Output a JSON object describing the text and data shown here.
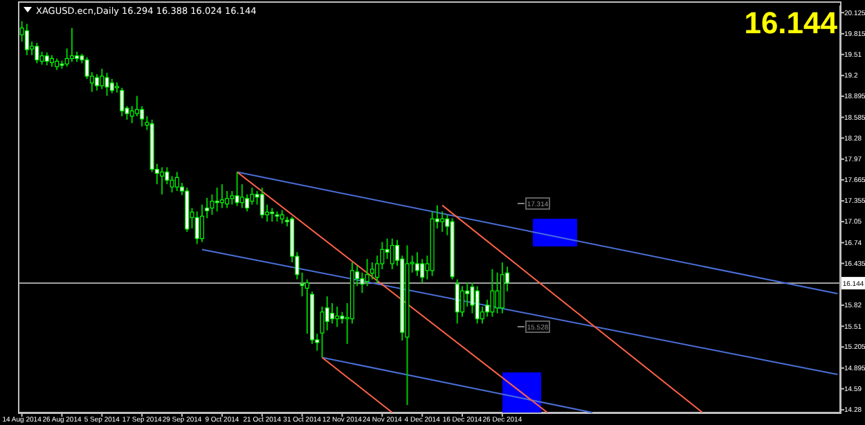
{
  "chart_data": {
    "type": "candlestick",
    "title": "XAGUSD.ecn,Daily  16.294 16.388 16.024 16.144",
    "categories": [
      "14 Aug 2014",
      null,
      null,
      null,
      null,
      null,
      null,
      null,
      "26 Aug 2014",
      null,
      null,
      null,
      null,
      null,
      null,
      null,
      "5 Sep 2014",
      null,
      null,
      null,
      null,
      null,
      null,
      null,
      "17 Sep 2014",
      null,
      null,
      null,
      null,
      null,
      null,
      null,
      "29 Sep 2014",
      null,
      null,
      null,
      null,
      null,
      null,
      null,
      "9 Oct 2014",
      null,
      null,
      null,
      null,
      null,
      null,
      null,
      "21 Oct 2014",
      null,
      null,
      null,
      null,
      null,
      null,
      null,
      "31 Oct 2014",
      null,
      null,
      null,
      null,
      null,
      null,
      null,
      "12 Nov 2014",
      null,
      null,
      null,
      null,
      null,
      null,
      null,
      "24 Nov 2014",
      null,
      null,
      null,
      null,
      null,
      null,
      null,
      "4 Dec 2014",
      null,
      null,
      null,
      null,
      null,
      null,
      null,
      "16 Dec 2014",
      null,
      null,
      null,
      null,
      null,
      null,
      null,
      "26 Dec 2014",
      null,
      null,
      null,
      null,
      null,
      null,
      null,
      null,
      null,
      null,
      null,
      null,
      null,
      null,
      null,
      null,
      null,
      null,
      null,
      null,
      null,
      null,
      null,
      null,
      null,
      null,
      null,
      null,
      null,
      null,
      null,
      null,
      null,
      null,
      null,
      null,
      null,
      null,
      null,
      null,
      null,
      null,
      null,
      null,
      null,
      null,
      null,
      null,
      null,
      null,
      null,
      null,
      null,
      null,
      null,
      null,
      null,
      null,
      null,
      null,
      null,
      null,
      null,
      null,
      null,
      null,
      null
    ],
    "ohlc": [
      [
        19.8,
        20.0,
        19.7,
        19.9
      ],
      [
        19.86,
        19.96,
        19.5,
        19.58
      ],
      [
        19.59,
        19.7,
        19.5,
        19.63
      ],
      [
        19.63,
        19.68,
        19.38,
        19.43
      ],
      [
        19.41,
        19.55,
        19.36,
        19.49
      ],
      [
        19.49,
        19.54,
        19.35,
        19.41
      ],
      [
        19.39,
        19.5,
        19.33,
        19.45
      ],
      [
        19.33,
        19.45,
        19.28,
        19.41
      ],
      [
        19.37,
        19.42,
        19.3,
        19.35
      ],
      [
        19.37,
        19.6,
        19.33,
        19.45
      ],
      [
        19.45,
        19.9,
        19.4,
        19.49
      ],
      [
        19.49,
        19.55,
        19.4,
        19.45
      ],
      [
        19.49,
        19.52,
        19.38,
        19.43
      ],
      [
        19.43,
        19.47,
        19.15,
        19.19
      ],
      [
        19.09,
        19.25,
        18.96,
        19.19
      ],
      [
        19.17,
        19.22,
        18.98,
        19.05
      ],
      [
        19.05,
        19.3,
        19.0,
        19.19
      ],
      [
        19.17,
        19.24,
        18.9,
        19.03
      ],
      [
        19.09,
        19.15,
        18.94,
        18.98
      ],
      [
        19.02,
        19.1,
        18.95,
        19.04
      ],
      [
        18.98,
        19.02,
        18.6,
        18.68
      ],
      [
        18.72,
        18.75,
        18.55,
        18.64
      ],
      [
        18.6,
        18.75,
        18.5,
        18.68
      ],
      [
        18.64,
        18.9,
        18.6,
        18.7
      ],
      [
        18.7,
        18.75,
        18.45,
        18.56
      ],
      [
        18.47,
        18.6,
        18.4,
        18.51
      ],
      [
        18.49,
        18.55,
        17.78,
        17.82
      ],
      [
        17.82,
        17.9,
        17.6,
        17.76
      ],
      [
        17.72,
        17.85,
        17.45,
        17.78
      ],
      [
        17.78,
        17.85,
        17.6,
        17.66
      ],
      [
        17.56,
        17.72,
        17.48,
        17.66
      ],
      [
        17.56,
        17.78,
        17.5,
        17.7
      ],
      [
        17.56,
        17.62,
        17.44,
        17.5
      ],
      [
        17.5,
        17.55,
        16.9,
        16.94
      ],
      [
        17.11,
        17.25,
        16.95,
        17.19
      ],
      [
        17.11,
        17.2,
        16.72,
        16.8
      ],
      [
        16.8,
        17.3,
        16.75,
        17.13
      ],
      [
        17.25,
        17.4,
        17.1,
        17.21
      ],
      [
        17.25,
        17.45,
        17.15,
        17.35
      ],
      [
        17.35,
        17.55,
        17.2,
        17.33
      ],
      [
        17.33,
        17.6,
        17.25,
        17.37
      ],
      [
        17.31,
        17.5,
        17.25,
        17.39
      ],
      [
        17.39,
        17.5,
        17.3,
        17.43
      ],
      [
        17.43,
        17.78,
        17.28,
        17.33
      ],
      [
        17.33,
        17.6,
        17.25,
        17.41
      ],
      [
        17.39,
        17.45,
        17.2,
        17.25
      ],
      [
        17.35,
        17.55,
        17.3,
        17.45
      ],
      [
        17.45,
        17.5,
        17.3,
        17.41
      ],
      [
        17.45,
        17.55,
        17.1,
        17.15
      ],
      [
        17.15,
        17.3,
        17.05,
        17.19
      ],
      [
        17.19,
        17.25,
        17.05,
        17.17
      ],
      [
        17.15,
        17.2,
        17.05,
        17.13
      ],
      [
        17.09,
        17.22,
        17.02,
        17.15
      ],
      [
        17.07,
        17.12,
        16.98,
        17.05
      ],
      [
        17.09,
        17.12,
        16.45,
        16.54
      ],
      [
        16.54,
        16.6,
        16.2,
        16.27
      ],
      [
        16.13,
        16.3,
        15.95,
        16.11
      ],
      [
        16.07,
        16.2,
        15.4,
        16.15
      ],
      [
        15.98,
        16.02,
        15.25,
        15.31
      ],
      [
        15.31,
        15.4,
        15.15,
        15.27
      ],
      [
        15.41,
        15.8,
        15.05,
        15.72
      ],
      [
        15.78,
        15.95,
        15.45,
        15.58
      ],
      [
        15.7,
        15.85,
        15.55,
        15.62
      ],
      [
        15.62,
        15.8,
        15.5,
        15.66
      ],
      [
        15.66,
        15.72,
        15.55,
        15.62
      ],
      [
        15.62,
        15.85,
        15.25,
        15.64
      ],
      [
        15.62,
        16.45,
        15.55,
        16.33
      ],
      [
        16.31,
        16.4,
        16.1,
        16.21
      ],
      [
        16.21,
        16.3,
        16.0,
        16.13
      ],
      [
        16.17,
        16.5,
        16.1,
        16.27
      ],
      [
        16.29,
        16.45,
        16.2,
        16.35
      ],
      [
        16.23,
        16.55,
        16.15,
        16.43
      ],
      [
        16.43,
        16.75,
        16.35,
        16.64
      ],
      [
        16.64,
        16.8,
        16.5,
        16.6
      ],
      [
        16.43,
        16.8,
        16.35,
        16.7
      ],
      [
        16.7,
        16.78,
        16.4,
        16.48
      ],
      [
        16.5,
        16.55,
        15.3,
        15.42
      ],
      [
        15.35,
        16.7,
        14.35,
        16.43
      ],
      [
        16.43,
        16.55,
        16.3,
        16.45
      ],
      [
        16.43,
        16.6,
        16.25,
        16.33
      ],
      [
        16.43,
        16.5,
        16.15,
        16.23
      ],
      [
        16.33,
        16.55,
        16.2,
        16.43
      ],
      [
        16.33,
        17.2,
        16.25,
        17.09
      ],
      [
        17.09,
        17.29,
        16.95,
        17.05
      ],
      [
        17.05,
        17.2,
        16.9,
        17.09
      ],
      [
        17.09,
        17.15,
        16.85,
        16.98
      ],
      [
        17.05,
        17.1,
        16.2,
        16.24
      ],
      [
        16.13,
        16.2,
        15.55,
        15.72
      ],
      [
        15.72,
        16.1,
        15.65,
        16.03
      ],
      [
        16.03,
        16.15,
        15.8,
        15.99
      ],
      [
        16.09,
        16.15,
        15.7,
        15.82
      ],
      [
        16.03,
        16.1,
        15.55,
        15.62
      ],
      [
        15.62,
        15.8,
        15.55,
        15.72
      ],
      [
        15.82,
        15.9,
        15.65,
        15.72
      ],
      [
        15.72,
        16.35,
        15.65,
        16.03
      ],
      [
        15.78,
        16.3,
        15.7,
        16.03
      ],
      [
        15.78,
        16.45,
        15.7,
        16.27
      ],
      [
        16.294,
        16.388,
        16.024,
        16.144
      ],
      null,
      null,
      null,
      null,
      null,
      null,
      null,
      null,
      null,
      null,
      null,
      null,
      null,
      null,
      null,
      null,
      null,
      null,
      null,
      null,
      null,
      null,
      null,
      null,
      null,
      null,
      null,
      null,
      null,
      null,
      null,
      null,
      null,
      null,
      null,
      null,
      null,
      null,
      null,
      null,
      null,
      null,
      null,
      null,
      null,
      null,
      null,
      null,
      null,
      null,
      null,
      null,
      null,
      null,
      null,
      null,
      null,
      null,
      null,
      null,
      null,
      null,
      null,
      null,
      null,
      null
    ],
    "series": [
      {
        "type": "line",
        "color": "#4a6fd8",
        "values": [
          null,
          null,
          null,
          null,
          null,
          null,
          null,
          null,
          null,
          null,
          null,
          null,
          null,
          null,
          null,
          null,
          null,
          null,
          null,
          null,
          null,
          null,
          null,
          null,
          null,
          null,
          null,
          null,
          null,
          null,
          null,
          null,
          null,
          null,
          null,
          null,
          null,
          null,
          null,
          null,
          null,
          null,
          null,
          17.78,
          null,
          null,
          null,
          null,
          null,
          null,
          null,
          null,
          null,
          null,
          null,
          null,
          null,
          null,
          null,
          null,
          null,
          null,
          null,
          null,
          null,
          null,
          null,
          null,
          null,
          null,
          null,
          null,
          null,
          null,
          null,
          null,
          null,
          null,
          null,
          null,
          null,
          null,
          null,
          null,
          null,
          null,
          null,
          null,
          null,
          null,
          null,
          null,
          null,
          null,
          null,
          null,
          null,
          null,
          null,
          null,
          null,
          null,
          null,
          null,
          null,
          null,
          null,
          null,
          null,
          null,
          null,
          null,
          null,
          null,
          null,
          null,
          null,
          null,
          null,
          null,
          null,
          null,
          null,
          null,
          null,
          null,
          null,
          null,
          null,
          null,
          null,
          null,
          null,
          null,
          null,
          null,
          null,
          null,
          null,
          null,
          null,
          null,
          null,
          null,
          null,
          null,
          null,
          null,
          null,
          null,
          null,
          null,
          null,
          null,
          null,
          null,
          null,
          null,
          null,
          null,
          null,
          null,
          null,
          15.99
        ]
      },
      {
        "type": "line",
        "color": "#4a6fd8",
        "values": [
          null,
          null,
          null,
          null,
          null,
          null,
          null,
          null,
          null,
          null,
          null,
          null,
          null,
          null,
          null,
          null,
          null,
          null,
          null,
          null,
          null,
          null,
          null,
          null,
          null,
          null,
          null,
          null,
          null,
          null,
          null,
          null,
          null,
          null,
          null,
          null,
          16.64,
          null,
          null,
          null,
          null,
          null,
          null,
          null,
          null,
          null,
          null,
          null,
          null,
          null,
          null,
          null,
          null,
          null,
          null,
          null,
          null,
          null,
          null,
          null,
          null,
          null,
          null,
          null,
          null,
          null,
          null,
          null,
          null,
          null,
          null,
          null,
          null,
          null,
          null,
          null,
          null,
          null,
          null,
          null,
          null,
          null,
          null,
          null,
          null,
          null,
          null,
          null,
          null,
          null,
          null,
          null,
          null,
          null,
          null,
          null,
          null,
          null,
          null,
          null,
          null,
          null,
          null,
          null,
          null,
          null,
          null,
          null,
          null,
          null,
          null,
          null,
          null,
          null,
          null,
          null,
          null,
          null,
          null,
          null,
          null,
          null,
          null,
          null,
          null,
          null,
          null,
          null,
          null,
          null,
          null,
          null,
          null,
          null,
          null,
          null,
          null,
          null,
          null,
          null,
          null,
          null,
          null,
          null,
          null,
          null,
          null,
          null,
          null,
          null,
          null,
          null,
          null,
          null,
          null,
          null,
          null,
          null,
          null,
          null,
          null,
          null,
          null,
          14.8
        ]
      },
      {
        "type": "line",
        "color": "#4a6fd8",
        "values": [
          null,
          null,
          null,
          null,
          null,
          null,
          null,
          null,
          null,
          null,
          null,
          null,
          null,
          null,
          null,
          null,
          null,
          null,
          null,
          null,
          null,
          null,
          null,
          null,
          null,
          null,
          null,
          null,
          null,
          null,
          null,
          null,
          null,
          null,
          null,
          null,
          null,
          null,
          null,
          null,
          null,
          null,
          null,
          null,
          null,
          null,
          null,
          null,
          null,
          null,
          null,
          null,
          null,
          null,
          null,
          null,
          null,
          null,
          null,
          null,
          15.05,
          null,
          null,
          null,
          null,
          null,
          null,
          null,
          null,
          null,
          null,
          null,
          null,
          null,
          null,
          null,
          null,
          null,
          null,
          null,
          null,
          null,
          null,
          null,
          null,
          null,
          null,
          null,
          null,
          null,
          null,
          null,
          null,
          null,
          null,
          null,
          null,
          null,
          null,
          null,
          null,
          null,
          null,
          null,
          null,
          null,
          null,
          null,
          null,
          null,
          null,
          null,
          null,
          null,
          14.24,
          null,
          null,
          null,
          null,
          null,
          null,
          null,
          null,
          null,
          null,
          null,
          null,
          null,
          null,
          null,
          null,
          null,
          null,
          null,
          null,
          null,
          null,
          null,
          null,
          null,
          null,
          null,
          null,
          null,
          null,
          null,
          null,
          null,
          null,
          null,
          null,
          null,
          null,
          null,
          null,
          null,
          null,
          null,
          null,
          null,
          null,
          null,
          null,
          null
        ]
      },
      {
        "type": "line",
        "color": "#ff6347",
        "values": [
          null,
          null,
          null,
          null,
          null,
          null,
          null,
          null,
          null,
          null,
          null,
          null,
          null,
          null,
          null,
          null,
          null,
          null,
          null,
          null,
          null,
          null,
          null,
          null,
          null,
          null,
          null,
          null,
          null,
          null,
          null,
          null,
          null,
          null,
          null,
          null,
          null,
          null,
          null,
          null,
          null,
          null,
          null,
          17.78,
          null,
          null,
          null,
          null,
          null,
          null,
          null,
          null,
          null,
          null,
          null,
          null,
          null,
          null,
          null,
          null,
          null,
          null,
          null,
          null,
          null,
          null,
          null,
          null,
          null,
          null,
          null,
          null,
          null,
          null,
          null,
          null,
          null,
          null,
          null,
          null,
          null,
          null,
          null,
          null,
          null,
          null,
          null,
          null,
          null,
          null,
          null,
          null,
          null,
          null,
          null,
          null,
          null,
          null,
          null,
          null,
          null,
          null,
          null,
          null,
          null,
          14.24,
          null,
          null,
          null,
          null,
          null,
          null,
          null,
          null,
          null,
          null,
          null,
          null,
          null,
          null,
          null,
          null,
          null,
          null,
          null,
          null,
          null,
          null,
          null,
          null,
          null,
          null,
          null,
          null,
          null,
          null,
          null,
          null,
          null,
          null,
          null,
          null,
          null,
          null,
          null,
          null,
          null,
          null,
          null,
          null,
          null,
          null,
          null,
          null,
          null,
          null,
          null,
          null,
          null,
          null,
          null,
          null,
          null,
          null
        ]
      },
      {
        "type": "line",
        "color": "#ff6347",
        "values": [
          null,
          null,
          null,
          null,
          null,
          null,
          null,
          null,
          null,
          null,
          null,
          null,
          null,
          null,
          null,
          null,
          null,
          null,
          null,
          null,
          null,
          null,
          null,
          null,
          null,
          null,
          null,
          null,
          null,
          null,
          null,
          null,
          null,
          null,
          null,
          null,
          null,
          null,
          null,
          null,
          null,
          null,
          null,
          null,
          null,
          null,
          null,
          null,
          null,
          null,
          null,
          null,
          null,
          null,
          null,
          null,
          null,
          null,
          null,
          null,
          15.05,
          null,
          null,
          null,
          null,
          null,
          null,
          null,
          null,
          null,
          null,
          null,
          null,
          null,
          14.24,
          null,
          null,
          null,
          null,
          null,
          null,
          null,
          null,
          null,
          null,
          null,
          null,
          null,
          null,
          null,
          null,
          null,
          null,
          null,
          null,
          null,
          null,
          null,
          null,
          null,
          null,
          null,
          null,
          null,
          null,
          null,
          null,
          null,
          null,
          null,
          null,
          null,
          null,
          null,
          null,
          null,
          null,
          null,
          null,
          null,
          null,
          null,
          null,
          null,
          null,
          null,
          null,
          null,
          null,
          null,
          null,
          null,
          null,
          null,
          null,
          null,
          null,
          null,
          null,
          null,
          null,
          null,
          null,
          null,
          null,
          null,
          null,
          null,
          null,
          null,
          null,
          null,
          null,
          null,
          null,
          null,
          null,
          null,
          null,
          null,
          null,
          null,
          null,
          null
        ]
      },
      {
        "type": "line",
        "color": "#ff6347",
        "values": [
          null,
          null,
          null,
          null,
          null,
          null,
          null,
          null,
          null,
          null,
          null,
          null,
          null,
          null,
          null,
          null,
          null,
          null,
          null,
          null,
          null,
          null,
          null,
          null,
          null,
          null,
          null,
          null,
          null,
          null,
          null,
          null,
          null,
          null,
          null,
          null,
          null,
          null,
          null,
          null,
          null,
          null,
          null,
          null,
          null,
          null,
          null,
          null,
          null,
          null,
          null,
          null,
          null,
          null,
          null,
          null,
          null,
          null,
          null,
          null,
          null,
          null,
          null,
          null,
          null,
          null,
          null,
          null,
          null,
          null,
          null,
          null,
          null,
          null,
          null,
          null,
          null,
          null,
          null,
          null,
          null,
          null,
          null,
          null,
          17.29,
          null,
          null,
          null,
          null,
          null,
          null,
          null,
          null,
          null,
          null,
          null,
          null,
          null,
          null,
          null,
          null,
          null,
          null,
          null,
          null,
          null,
          null,
          null,
          null,
          null,
          null,
          null,
          null,
          null,
          null,
          null,
          null,
          null,
          null,
          null,
          null,
          null,
          null,
          null,
          null,
          null,
          null,
          null,
          null,
          null,
          null,
          null,
          null,
          null,
          null,
          null,
          14.24,
          null,
          null,
          null,
          null,
          null,
          null,
          null,
          null,
          null,
          null,
          null,
          null,
          null,
          null,
          null,
          null,
          null,
          null,
          null,
          null,
          null,
          null,
          null,
          null,
          null,
          null,
          null
        ]
      }
    ],
    "ylim": [
      14.24,
      20.23
    ],
    "yticks": [
      20.125,
      19.815,
      19.51,
      19.2,
      18.895,
      18.585,
      18.28,
      17.97,
      17.665,
      17.355,
      17.05,
      16.74,
      16.435,
      15.82,
      15.51,
      15.205,
      14.895,
      14.59,
      14.28
    ],
    "ref_lines": [
      {
        "axis": "y",
        "value": 16.144,
        "label": "16.144",
        "color": "#a0a0a0"
      }
    ],
    "annotations": [
      "16.144",
      "17.314",
      "15.528"
    ],
    "grid": false
  }
}
